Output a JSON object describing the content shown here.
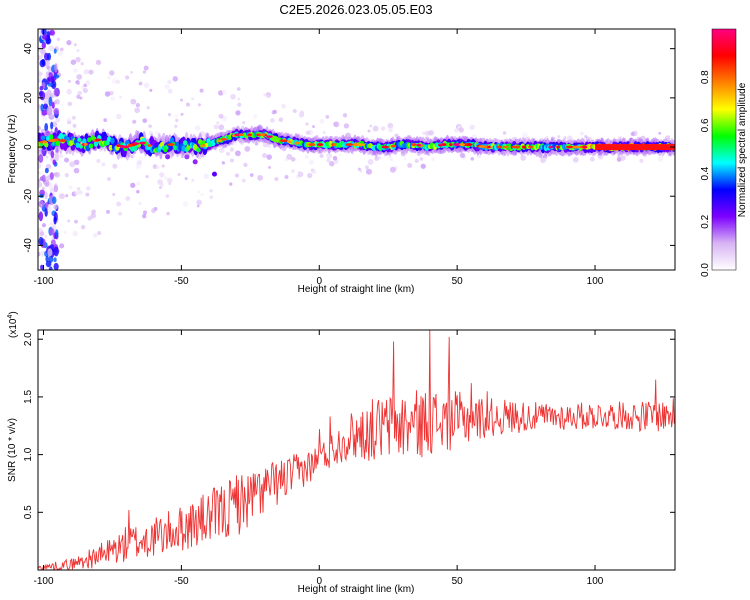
{
  "title": "C2E5.2026.023.05.05.E03",
  "chart_data": [
    {
      "type": "heatmap",
      "xlabel": "Height of straight line (km)",
      "ylabel": "Frequency (Hz)",
      "xlim": [
        -102,
        129
      ],
      "ylim": [
        -50,
        48
      ],
      "xticks": [
        -100,
        -50,
        0,
        50,
        100
      ],
      "yticks": [
        -40,
        -20,
        0,
        20,
        40
      ],
      "ridge_center_hz": [
        [
          -100,
          2
        ],
        [
          -95,
          3
        ],
        [
          -90,
          2
        ],
        [
          -85,
          1
        ],
        [
          -80,
          3
        ],
        [
          -75,
          1
        ],
        [
          -70,
          0
        ],
        [
          -65,
          2
        ],
        [
          -60,
          0
        ],
        [
          -55,
          1
        ],
        [
          -50,
          1
        ],
        [
          -45,
          0
        ],
        [
          -40,
          1
        ],
        [
          -35,
          3
        ],
        [
          -30,
          5
        ],
        [
          -25,
          5
        ],
        [
          -20,
          5
        ],
        [
          -15,
          3
        ],
        [
          -10,
          2
        ],
        [
          -5,
          1
        ],
        [
          0,
          1
        ],
        [
          5,
          1
        ],
        [
          10,
          1
        ],
        [
          15,
          1
        ],
        [
          20,
          0
        ],
        [
          25,
          0
        ],
        [
          30,
          1
        ],
        [
          35,
          1
        ],
        [
          40,
          0
        ],
        [
          45,
          1
        ],
        [
          50,
          1
        ],
        [
          55,
          1
        ],
        [
          60,
          0
        ],
        [
          65,
          0
        ],
        [
          70,
          0
        ],
        [
          75,
          0
        ],
        [
          80,
          0
        ],
        [
          85,
          0
        ],
        [
          90,
          0
        ],
        [
          95,
          0
        ],
        [
          100,
          0
        ],
        [
          105,
          0
        ],
        [
          110,
          0
        ],
        [
          115,
          0
        ],
        [
          120,
          0
        ],
        [
          125,
          0
        ],
        [
          129,
          0
        ]
      ],
      "colorbar": {
        "label": "Normalized spectral amplitude",
        "range": [
          0,
          1
        ],
        "ticks": [
          "0.0",
          "0.2",
          "0.4",
          "0.6",
          "0.8"
        ],
        "colors": [
          "#ffffff",
          "#d8b4f4",
          "#7d00ff",
          "#0000ff",
          "#00ffff",
          "#00ff00",
          "#ffff00",
          "#ff8000",
          "#ff0000",
          "#ff0080"
        ]
      }
    },
    {
      "type": "line",
      "xlabel": "Height of straight line (km)",
      "ylabel": "SNR (10 * v/v)",
      "scale_label": "(x10",
      "scale_exp": "4",
      "scale_close": ")",
      "xlim": [
        -102,
        129
      ],
      "ylim": [
        0,
        2.08
      ],
      "xticks": [
        -100,
        -50,
        0,
        50,
        100
      ],
      "yticks": [
        "0.5",
        "1.0",
        "1.5",
        "2.0"
      ],
      "color": "#ee3333",
      "envelope": {
        "x": [
          -102,
          -90,
          -80,
          -70,
          -60,
          -50,
          -40,
          -30,
          -20,
          -10,
          -5,
          0,
          5,
          10,
          20,
          30,
          40,
          50,
          60,
          70,
          80,
          90,
          100,
          110,
          120,
          129
        ],
        "y": [
          0.02,
          0.05,
          0.12,
          0.22,
          0.28,
          0.36,
          0.45,
          0.55,
          0.7,
          0.82,
          0.88,
          0.95,
          1.05,
          1.15,
          1.22,
          1.25,
          1.28,
          1.3,
          1.32,
          1.33,
          1.33,
          1.33,
          1.34,
          1.34,
          1.33,
          1.35
        ]
      },
      "amplitude": [
        0.02,
        0.05,
        0.1,
        0.16,
        0.18,
        0.2,
        0.24,
        0.28,
        0.22,
        0.18,
        0.15,
        0.15,
        0.15,
        0.2,
        0.28,
        0.3,
        0.3,
        0.25,
        0.18,
        0.15,
        0.12,
        0.12,
        0.12,
        0.12,
        0.14,
        0.14
      ],
      "peaks": [
        [
          -69,
          0.52
        ],
        [
          -30,
          0.82
        ],
        [
          0,
          1.22
        ],
        [
          4,
          1.33
        ],
        [
          27,
          1.98
        ],
        [
          40,
          2.08
        ],
        [
          47,
          2.02
        ],
        [
          55,
          1.62
        ],
        [
          61,
          1.55
        ],
        [
          122,
          1.65
        ]
      ]
    }
  ]
}
